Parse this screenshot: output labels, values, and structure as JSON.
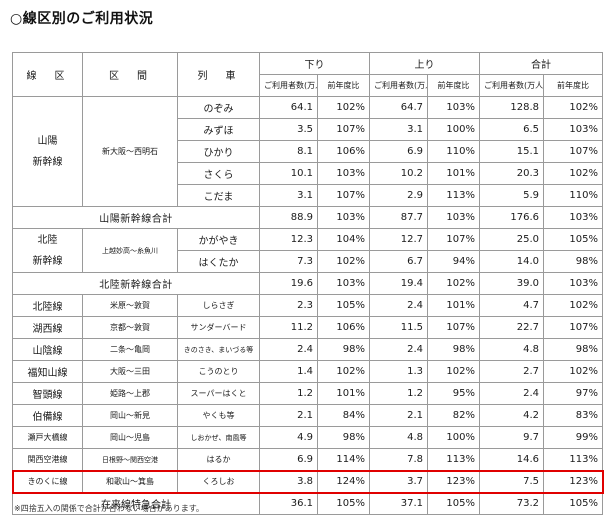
{
  "title": "○線区別のご利用状況",
  "headers": {
    "line": "線　区",
    "section": "区　間",
    "train": "列　車",
    "down": "下り",
    "up": "上り",
    "total": "合計",
    "users": "ご利用者数(万人)",
    "ratio": "前年度比"
  },
  "sanyo": {
    "line": [
      "山陽",
      "新幹線"
    ],
    "section": "新大阪～西明石",
    "rows": [
      {
        "train": "のぞみ",
        "d": "64.1",
        "dr": "102%",
        "u": "64.7",
        "ur": "103%",
        "t": "128.8",
        "tr": "102%"
      },
      {
        "train": "みずほ",
        "d": "3.5",
        "dr": "107%",
        "u": "3.1",
        "ur": "100%",
        "t": "6.5",
        "tr": "103%"
      },
      {
        "train": "ひかり",
        "d": "8.1",
        "dr": "106%",
        "u": "6.9",
        "ur": "110%",
        "t": "15.1",
        "tr": "107%"
      },
      {
        "train": "さくら",
        "d": "10.1",
        "dr": "103%",
        "u": "10.2",
        "ur": "101%",
        "t": "20.3",
        "tr": "102%"
      },
      {
        "train": "こだま",
        "d": "3.1",
        "dr": "107%",
        "u": "2.9",
        "ur": "113%",
        "t": "5.9",
        "tr": "110%"
      }
    ],
    "subtotal": {
      "label": "山陽新幹線合計",
      "d": "88.9",
      "dr": "103%",
      "u": "87.7",
      "ur": "103%",
      "t": "176.6",
      "tr": "103%"
    }
  },
  "hokuriku": {
    "line": [
      "北陸",
      "新幹線"
    ],
    "section": "上越妙高～糸魚川",
    "rows": [
      {
        "train": "かがやき",
        "d": "12.3",
        "dr": "104%",
        "u": "12.7",
        "ur": "107%",
        "t": "25.0",
        "tr": "105%"
      },
      {
        "train": "はくたか",
        "d": "7.3",
        "dr": "102%",
        "u": "6.7",
        "ur": "94%",
        "t": "14.0",
        "tr": "98%"
      }
    ],
    "subtotal": {
      "label": "北陸新幹線合計",
      "d": "19.6",
      "dr": "103%",
      "u": "19.4",
      "ur": "102%",
      "t": "39.0",
      "tr": "103%"
    }
  },
  "conventional": [
    {
      "line": "北陸線",
      "section": "米原～敦賀",
      "train": "しらさぎ",
      "d": "2.3",
      "dr": "105%",
      "u": "2.4",
      "ur": "101%",
      "t": "4.7",
      "tr": "102%"
    },
    {
      "line": "湖西線",
      "section": "京都～敦賀",
      "train": "サンダーバード",
      "d": "11.2",
      "dr": "106%",
      "u": "11.5",
      "ur": "107%",
      "t": "22.7",
      "tr": "107%"
    },
    {
      "line": "山陰線",
      "section": "二条～亀岡",
      "train": "きのさき、まいづる等",
      "d": "2.4",
      "dr": "98%",
      "u": "2.4",
      "ur": "98%",
      "t": "4.8",
      "tr": "98%"
    },
    {
      "line": "福知山線",
      "section": "大阪～三田",
      "train": "こうのとり",
      "d": "1.4",
      "dr": "102%",
      "u": "1.3",
      "ur": "102%",
      "t": "2.7",
      "tr": "102%"
    },
    {
      "line": "智頭線",
      "section": "姫路～上郡",
      "train": "スーパーはくと",
      "d": "1.2",
      "dr": "101%",
      "u": "1.2",
      "ur": "95%",
      "t": "2.4",
      "tr": "97%"
    },
    {
      "line": "伯備線",
      "section": "岡山～新見",
      "train": "やくも等",
      "d": "2.1",
      "dr": "84%",
      "u": "2.1",
      "ur": "82%",
      "t": "4.2",
      "tr": "83%"
    },
    {
      "line": "瀬戸大橋線",
      "section": "岡山～児島",
      "train": "しおかぜ、南風等",
      "d": "4.9",
      "dr": "98%",
      "u": "4.8",
      "ur": "100%",
      "t": "9.7",
      "tr": "99%"
    },
    {
      "line": "関西空港線",
      "section": "日根野～関西空港",
      "train": "はるか",
      "d": "6.9",
      "dr": "114%",
      "u": "7.8",
      "ur": "113%",
      "t": "14.6",
      "tr": "113%"
    },
    {
      "line": "きのくに線",
      "section": "和歌山～箕島",
      "train": "くろしお",
      "d": "3.8",
      "dr": "124%",
      "u": "3.7",
      "ur": "123%",
      "t": "7.5",
      "tr": "123%"
    }
  ],
  "conventional_total": {
    "label": "在来線特急合計",
    "d": "36.1",
    "dr": "105%",
    "u": "37.1",
    "ur": "105%",
    "t": "73.2",
    "tr": "105%"
  },
  "note": "※四捨五入の関係で合計が合わない場合があります。",
  "highlight_color": "#e00000"
}
